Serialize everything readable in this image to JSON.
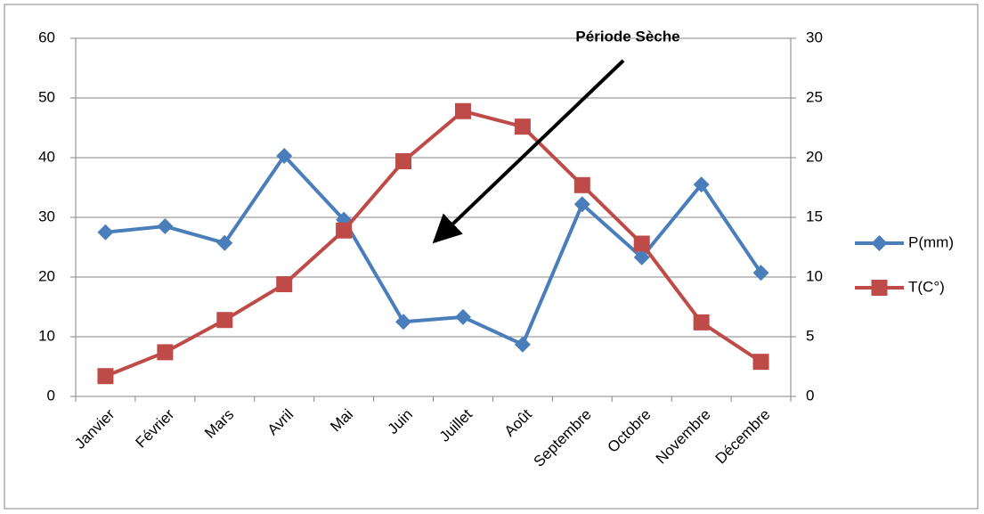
{
  "chart_data": {
    "type": "line",
    "annotation": "Période Sèche",
    "categories": [
      "Janvier",
      "Février",
      "Mars",
      "Avril",
      "Mai",
      "Juin",
      "Juillet",
      "Août",
      "Septembre",
      "Octobre",
      "Novembre",
      "Décembre"
    ],
    "series": [
      {
        "name": "P(mm)",
        "color": "#4a7ebb",
        "marker": "diamond",
        "values": [
          27.5,
          28.5,
          25.7,
          40.3,
          29.6,
          12.5,
          13.3,
          8.7,
          32.2,
          23.3,
          35.5,
          20.7
        ]
      },
      {
        "name": "T(C°)",
        "color": "#be4b48",
        "marker": "square",
        "axis": "y2",
        "values": [
          1.7,
          3.7,
          6.4,
          9.4,
          13.9,
          19.7,
          23.9,
          22.6,
          17.7,
          12.8,
          6.2,
          2.9
        ]
      }
    ],
    "ylim": [
      0,
      60
    ],
    "yticks": [
      0,
      10,
      20,
      30,
      40,
      50,
      60
    ],
    "y2lim": [
      0,
      30
    ],
    "y2ticks": [
      0,
      5,
      10,
      15,
      20,
      25,
      30
    ],
    "grid": true,
    "legend": "right"
  }
}
